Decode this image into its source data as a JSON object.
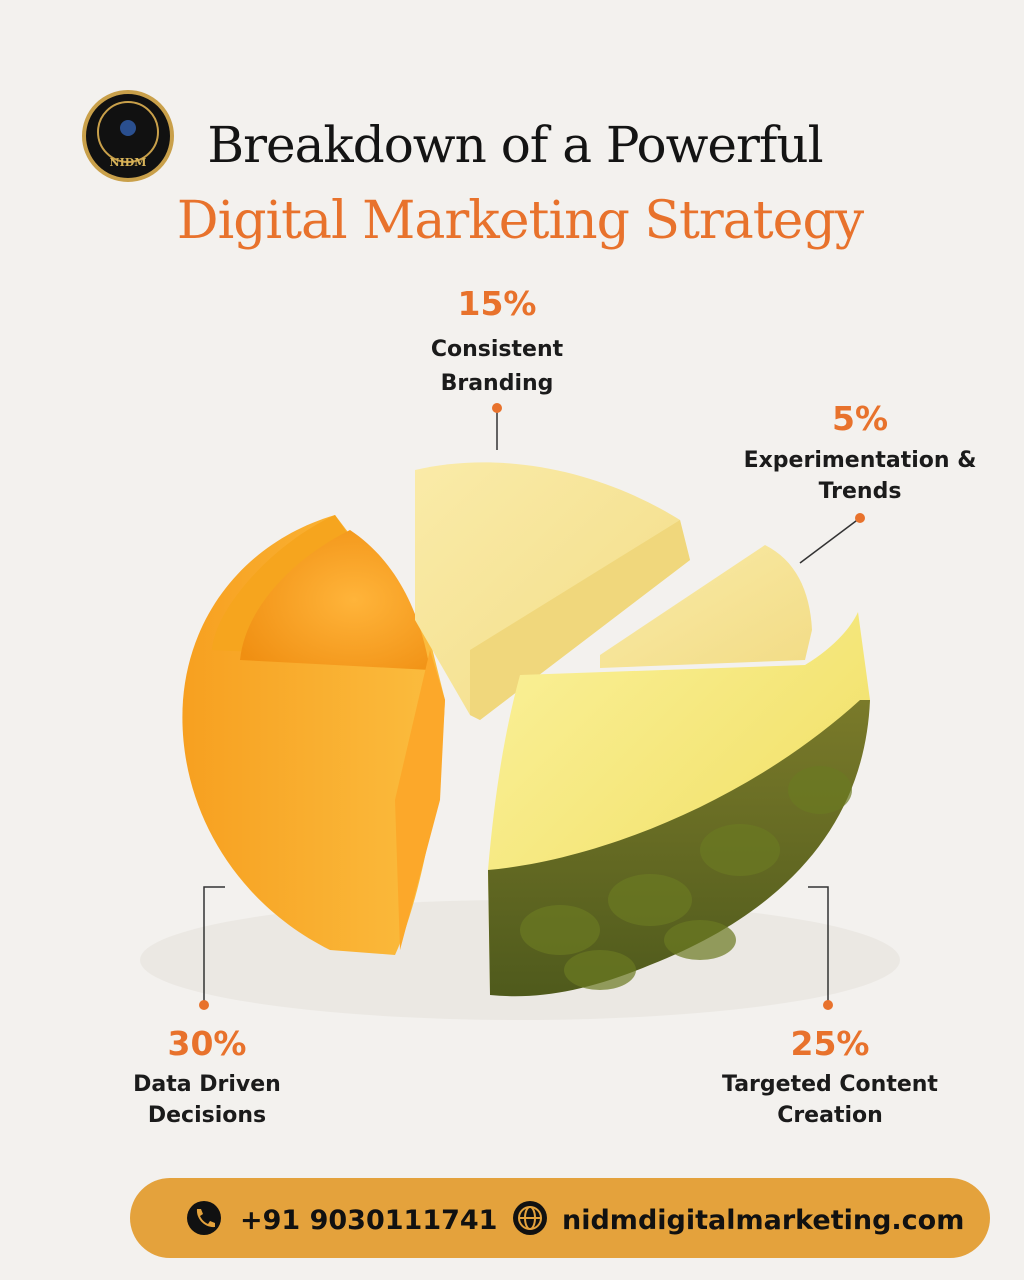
{
  "header": {
    "logo_text": "NIDM",
    "title_line1": "Breakdown of a Powerful",
    "title_line2": "Digital Marketing Strategy"
  },
  "items": [
    {
      "percent": "15%",
      "lines": [
        "Consistent",
        "Branding"
      ]
    },
    {
      "percent": "5%",
      "lines": [
        "Experimentation &",
        "Trends"
      ]
    },
    {
      "percent": "30%",
      "lines": [
        "Data Driven",
        "Decisions"
      ]
    },
    {
      "percent": "25%",
      "lines": [
        "Targeted Content",
        "Creation"
      ]
    }
  ],
  "footer": {
    "phone": "+91 9030111741",
    "website": "nidmdigitalmarketing.com"
  }
}
